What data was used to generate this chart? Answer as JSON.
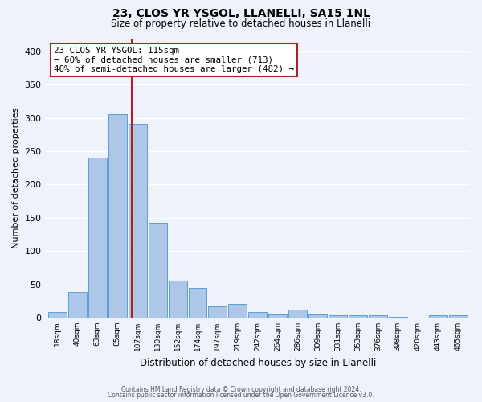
{
  "title": "23, CLOS YR YSGOL, LLANELLI, SA15 1NL",
  "subtitle": "Size of property relative to detached houses in Llanelli",
  "xlabel": "Distribution of detached houses by size in Llanelli",
  "ylabel": "Number of detached properties",
  "bin_labels": [
    "18sqm",
    "40sqm",
    "63sqm",
    "85sqm",
    "107sqm",
    "130sqm",
    "152sqm",
    "174sqm",
    "197sqm",
    "219sqm",
    "242sqm",
    "264sqm",
    "286sqm",
    "309sqm",
    "331sqm",
    "353sqm",
    "376sqm",
    "398sqm",
    "420sqm",
    "443sqm",
    "465sqm"
  ],
  "bar_values": [
    8,
    38,
    240,
    306,
    291,
    142,
    56,
    45,
    17,
    20,
    8,
    5,
    12,
    5,
    3,
    3,
    3,
    1,
    0,
    3,
    4
  ],
  "bar_color": "#aec6e8",
  "bar_edge_color": "#5a9fd4",
  "ylim": [
    0,
    420
  ],
  "yticks": [
    0,
    50,
    100,
    150,
    200,
    250,
    300,
    350,
    400
  ],
  "vline_color": "#aa2222",
  "annotation_title": "23 CLOS YR YSGOL: 115sqm",
  "annotation_line1": "← 60% of detached houses are smaller (713)",
  "annotation_line2": "40% of semi-detached houses are larger (482) →",
  "annotation_box_color": "#aa2222",
  "bg_color": "#eef2fb",
  "grid_color": "#ffffff",
  "footer1": "Contains HM Land Registry data © Crown copyright and database right 2024.",
  "footer2": "Contains public sector information licensed under the Open Government Licence v3.0."
}
